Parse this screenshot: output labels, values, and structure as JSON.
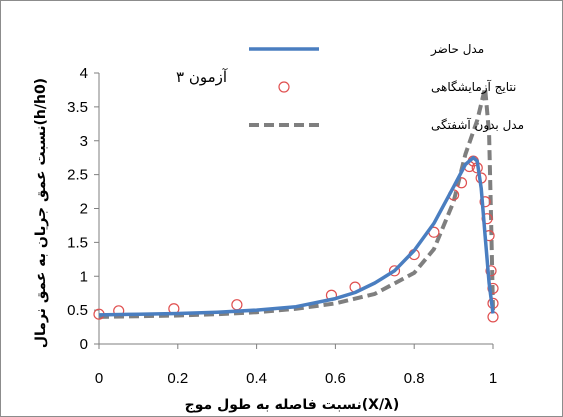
{
  "chart_data": {
    "type": "line",
    "annotation": "آزمون ۳",
    "xlabel": "نسبت فاصله به طول موج(X/λ)",
    "ylabel": "نسبت عمق جریان به عمق نرمال(h/h0)",
    "xlim": [
      0,
      1
    ],
    "ylim": [
      0,
      4
    ],
    "xticks": [
      0,
      0.2,
      0.4,
      0.6,
      0.8,
      1
    ],
    "xtick_labels": [
      "0",
      "0.2",
      "0.4",
      "0.6",
      "0.8",
      "1"
    ],
    "yticks": [
      0,
      0.5,
      1,
      1.5,
      2,
      2.5,
      3,
      3.5,
      4
    ],
    "ytick_labels": [
      "0",
      "0.5",
      "1",
      "1.5",
      "2",
      "2.5",
      "3",
      "3.5",
      "4"
    ],
    "grid": false,
    "legend_position": "top-right",
    "series": [
      {
        "name": "مدل حاضر",
        "style": "solid",
        "color": "#4a7ec0",
        "x": [
          0,
          0.1,
          0.2,
          0.3,
          0.4,
          0.5,
          0.6,
          0.65,
          0.7,
          0.75,
          0.8,
          0.85,
          0.9,
          0.93,
          0.95,
          0.96,
          0.97,
          0.98,
          0.99,
          1.0
        ],
        "y": [
          0.43,
          0.44,
          0.45,
          0.47,
          0.5,
          0.55,
          0.67,
          0.76,
          0.9,
          1.08,
          1.38,
          1.78,
          2.32,
          2.65,
          2.75,
          2.7,
          2.3,
          1.6,
          0.9,
          0.45
        ]
      },
      {
        "name": "نتایج آزمایشگاهی",
        "style": "markers",
        "color": "#e05050",
        "x": [
          0,
          0.05,
          0.19,
          0.35,
          0.59,
          0.65,
          0.75,
          0.8,
          0.85,
          0.9,
          0.92,
          0.94,
          0.95,
          0.96,
          0.97,
          0.98,
          0.985,
          0.99,
          0.995,
          1.0,
          1.0,
          1.0
        ],
        "y": [
          0.44,
          0.49,
          0.52,
          0.58,
          0.72,
          0.84,
          1.08,
          1.32,
          1.65,
          2.2,
          2.38,
          2.62,
          2.7,
          2.6,
          2.45,
          2.1,
          1.85,
          1.6,
          1.08,
          0.82,
          0.6,
          0.4
        ]
      },
      {
        "name": "مدل بدون آشفتگی",
        "style": "dashed",
        "color": "#7f7f7f",
        "x": [
          0,
          0.1,
          0.2,
          0.3,
          0.4,
          0.5,
          0.6,
          0.7,
          0.8,
          0.85,
          0.9,
          0.93,
          0.96,
          0.98,
          0.99,
          0.995,
          1.0
        ],
        "y": [
          0.4,
          0.41,
          0.42,
          0.44,
          0.47,
          0.52,
          0.6,
          0.74,
          1.05,
          1.4,
          2.1,
          2.8,
          3.3,
          3.78,
          3.1,
          1.9,
          0.5
        ]
      }
    ]
  }
}
